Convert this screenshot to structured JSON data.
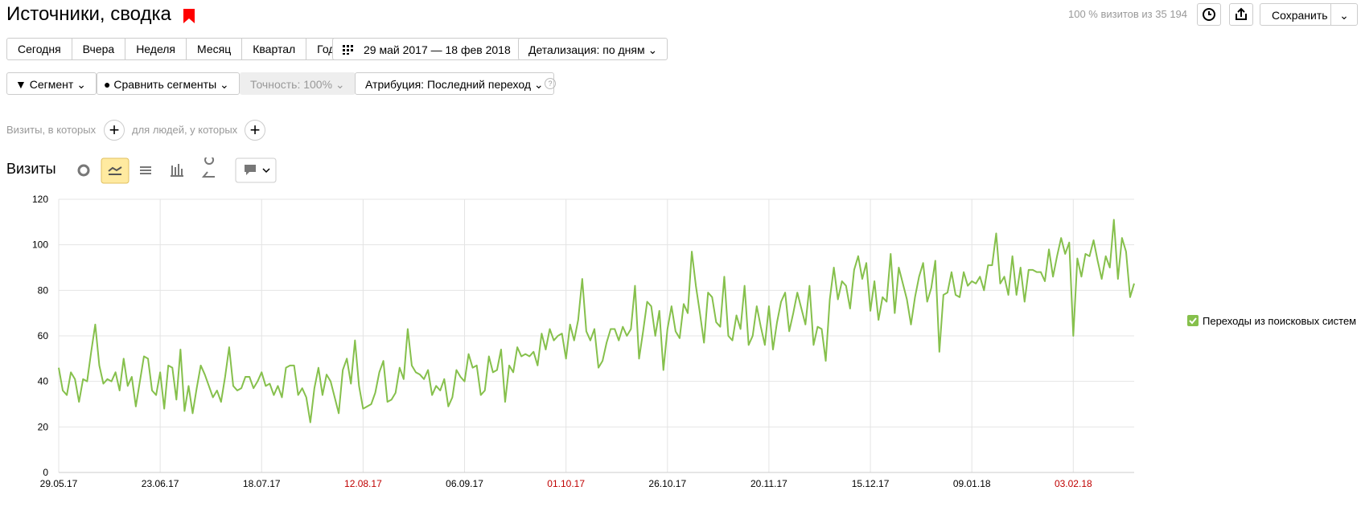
{
  "header": {
    "title": "Источники, сводка",
    "visits_share": "100 % визитов из 35 194",
    "save": "Сохранить"
  },
  "periods": [
    "Сегодня",
    "Вчера",
    "Неделя",
    "Месяц",
    "Квартал",
    "Год"
  ],
  "date_range": "29 май 2017 — 18 фев 2018",
  "detail": "Детализация: по дням",
  "segment": "Сегмент",
  "compare": "Сравнить сегменты",
  "accuracy": "Точность: 100%",
  "attribution": "Атрибуция: Последний переход",
  "filters": {
    "visits_where": "Визиты, в которых",
    "people_where": "для людей, у которых"
  },
  "metric": "Визиты",
  "chart_data": {
    "type": "line",
    "ylim": [
      0,
      120
    ],
    "yticks": [
      0,
      20,
      40,
      60,
      80,
      100,
      120
    ],
    "grid": true,
    "legend": "right",
    "weekend_label_color": "#c00000",
    "weekend_labels": [
      "12.08.17",
      "01.10.17",
      "03.02.18"
    ],
    "categories": [
      "29.05.17",
      null,
      null,
      null,
      null,
      null,
      null,
      null,
      null,
      null,
      null,
      null,
      null,
      null,
      null,
      null,
      null,
      null,
      null,
      null,
      null,
      null,
      null,
      null,
      null,
      "23.06.17",
      null,
      null,
      null,
      null,
      null,
      null,
      null,
      null,
      null,
      null,
      null,
      null,
      null,
      null,
      null,
      null,
      null,
      null,
      null,
      null,
      null,
      null,
      null,
      null,
      "18.07.17",
      null,
      null,
      null,
      null,
      null,
      null,
      null,
      null,
      null,
      null,
      null,
      null,
      null,
      null,
      null,
      null,
      null,
      null,
      null,
      null,
      null,
      null,
      null,
      null,
      "12.08.17",
      null,
      null,
      null,
      null,
      null,
      null,
      null,
      null,
      null,
      null,
      null,
      null,
      null,
      null,
      null,
      null,
      null,
      null,
      null,
      null,
      null,
      null,
      null,
      null,
      "06.09.17",
      null,
      null,
      null,
      null,
      null,
      null,
      null,
      null,
      null,
      null,
      null,
      null,
      null,
      null,
      null,
      null,
      null,
      null,
      null,
      null,
      null,
      null,
      null,
      null,
      "01.10.17",
      null,
      null,
      null,
      null,
      null,
      null,
      null,
      null,
      null,
      null,
      null,
      null,
      null,
      null,
      null,
      null,
      null,
      null,
      null,
      null,
      null,
      null,
      null,
      null,
      "26.10.17",
      null,
      null,
      null,
      null,
      null,
      null,
      null,
      null,
      null,
      null,
      null,
      null,
      null,
      null,
      null,
      null,
      null,
      null,
      null,
      null,
      null,
      null,
      null,
      null,
      "20.11.17",
      null,
      null,
      null,
      null,
      null,
      null,
      null,
      null,
      null,
      null,
      null,
      null,
      null,
      null,
      null,
      null,
      null,
      null,
      null,
      null,
      null,
      null,
      null,
      null,
      "15.12.17",
      null,
      null,
      null,
      null,
      null,
      null,
      null,
      null,
      null,
      null,
      null,
      null,
      null,
      null,
      null,
      null,
      null,
      null,
      null,
      null,
      null,
      null,
      null,
      null,
      "09.01.18",
      null,
      null,
      null,
      null,
      null,
      null,
      null,
      null,
      null,
      null,
      null,
      null,
      null,
      null,
      null,
      null,
      null,
      null,
      null,
      null,
      null,
      null,
      null,
      null,
      "03.02.18",
      null,
      null,
      null,
      null,
      null,
      null,
      null,
      null,
      null,
      null,
      null,
      null,
      null,
      null,
      null
    ],
    "series": [
      {
        "name": "Переходы из поисковых систем",
        "color": "#86c04c",
        "values": [
          46,
          36,
          34,
          44,
          41,
          31,
          41,
          40,
          53,
          65,
          47,
          39,
          41,
          40,
          44,
          36,
          50,
          38,
          42,
          29,
          40,
          51,
          50,
          36,
          34,
          44,
          28,
          47,
          46,
          32,
          54,
          27,
          38,
          26,
          37,
          47,
          43,
          38,
          33,
          36,
          31,
          42,
          55,
          38,
          36,
          37,
          42,
          42,
          37,
          40,
          44,
          38,
          39,
          34,
          38,
          33,
          46,
          47,
          47,
          34,
          37,
          33,
          22,
          37,
          46,
          34,
          43,
          40,
          33,
          26,
          45,
          50,
          39,
          58,
          38,
          28,
          29,
          30,
          35,
          44,
          49,
          31,
          32,
          35,
          46,
          41,
          63,
          47,
          44,
          43,
          41,
          45,
          34,
          38,
          36,
          41,
          29,
          33,
          45,
          42,
          40,
          52,
          46,
          47,
          34,
          36,
          51,
          44,
          45,
          54,
          31,
          47,
          44,
          55,
          51,
          52,
          51,
          53,
          47,
          61,
          54,
          63,
          58,
          60,
          61,
          50,
          65,
          58,
          67,
          85,
          62,
          58,
          63,
          46,
          49,
          57,
          63,
          63,
          58,
          64,
          60,
          63,
          82,
          50,
          62,
          75,
          73,
          60,
          71,
          45,
          63,
          73,
          62,
          59,
          74,
          70,
          97,
          82,
          70,
          57,
          79,
          77,
          66,
          64,
          86,
          60,
          58,
          69,
          63,
          82,
          56,
          60,
          73,
          64,
          56,
          73,
          54,
          66,
          75,
          79,
          62,
          70,
          79,
          72,
          65,
          82,
          56,
          64,
          63,
          49,
          76,
          90,
          76,
          84,
          82,
          72,
          89,
          95,
          85,
          92,
          71,
          84,
          67,
          77,
          75,
          96,
          70,
          90,
          83,
          76,
          65,
          77,
          86,
          92,
          75,
          81,
          93,
          53,
          78,
          79,
          88,
          78,
          77,
          88,
          82,
          84,
          83,
          86,
          80,
          91,
          91,
          105,
          83,
          86,
          78,
          95,
          78,
          90,
          75,
          89,
          89,
          88,
          88,
          84,
          98,
          86,
          95,
          103,
          96,
          101,
          60,
          94,
          86,
          96,
          95,
          102,
          93,
          85,
          95,
          90,
          111,
          85,
          103,
          97,
          77,
          83
        ]
      }
    ]
  }
}
